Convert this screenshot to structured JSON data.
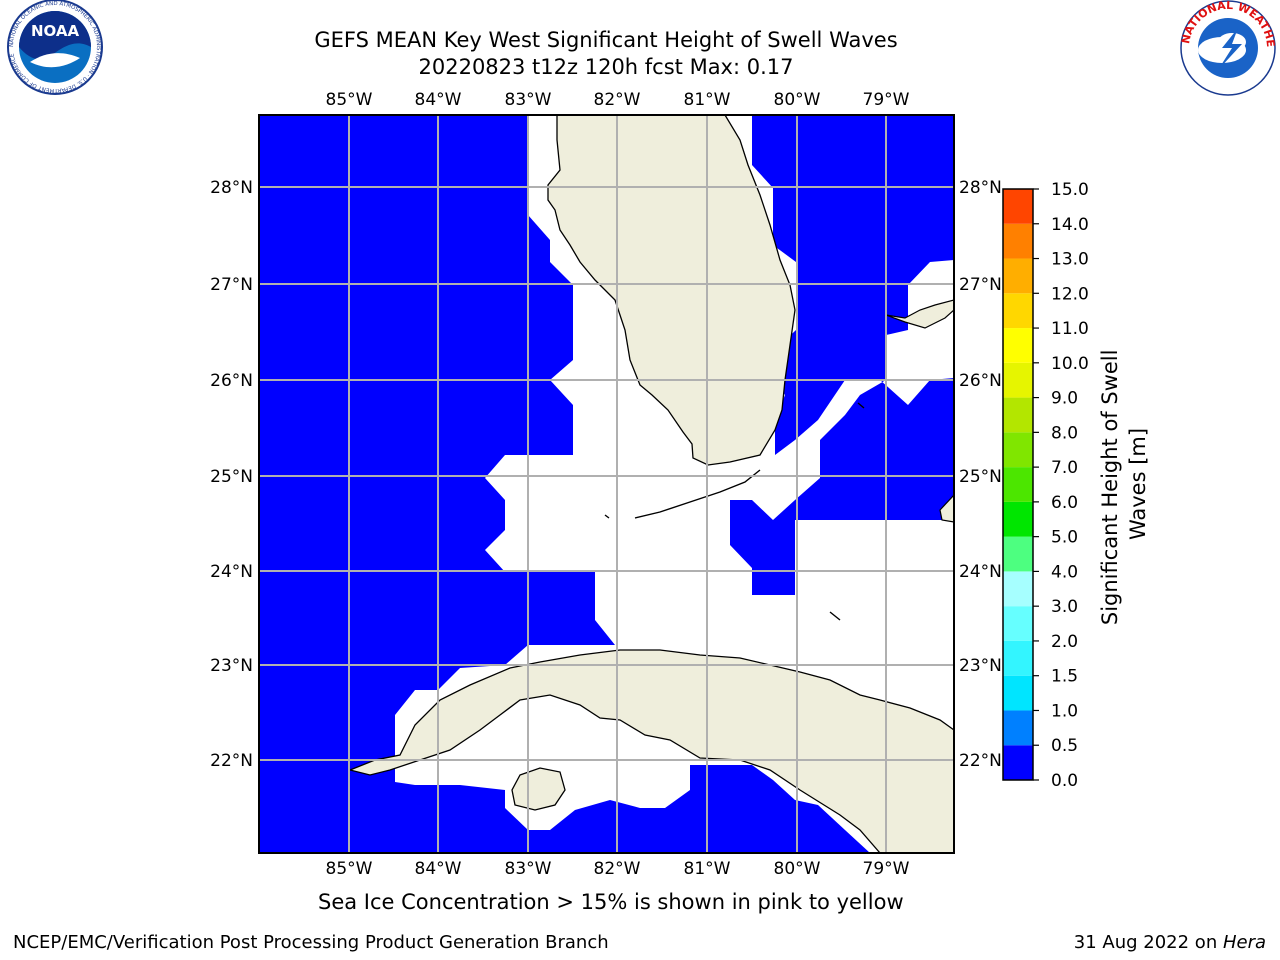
{
  "title_line1": "GEFS MEAN Key West Significant Height of Swell Waves",
  "title_line2": "20220823 t12z 120h fcst   Max: 0.17",
  "logos": {
    "left": {
      "name": "NOAA",
      "ring_text": "NATIONAL OCEANIC AND ATMOSPHERIC ADMINISTRATION · U.S. DEPARTMENT OF COMMERCE"
    },
    "right": {
      "name": "NATIONAL WEATHER SERVICE"
    }
  },
  "map": {
    "lon_labels": [
      "85°W",
      "84°W",
      "83°W",
      "82°W",
      "81°W",
      "80°W",
      "79°W"
    ],
    "lat_labels": [
      "28°N",
      "27°N",
      "26°N",
      "25°N",
      "24°N",
      "23°N",
      "22°N"
    ],
    "water_color": "#0000ff",
    "land_color": "#efeedc",
    "grid_color": "#b0b0b0"
  },
  "colorbar": {
    "label": "Significant Height of Swell Waves [m]",
    "ticks": [
      "0.0",
      "0.5",
      "1.0",
      "1.5",
      "2.0",
      "3.0",
      "4.0",
      "5.0",
      "6.0",
      "7.0",
      "8.0",
      "9.0",
      "10.0",
      "11.0",
      "12.0",
      "13.0",
      "14.0",
      "15.0"
    ],
    "colors": [
      "#0000ff",
      "#0080ff",
      "#00e5ff",
      "#33f5ff",
      "#66ffff",
      "#a6ffff",
      "#4dff80",
      "#00e600",
      "#4ce600",
      "#80e600",
      "#b3e600",
      "#e6f500",
      "#ffff00",
      "#ffd700",
      "#ffae00",
      "#ff8000",
      "#ff4500",
      "#ff1a00",
      "#ff0000"
    ]
  },
  "caption": "Sea Ice Concentration > 15% is shown in pink to yellow",
  "footer": {
    "left": "NCEP/EMC/Verification Post Processing Product Generation Branch",
    "date": "31 Aug 2022 on ",
    "host": "Hera"
  }
}
